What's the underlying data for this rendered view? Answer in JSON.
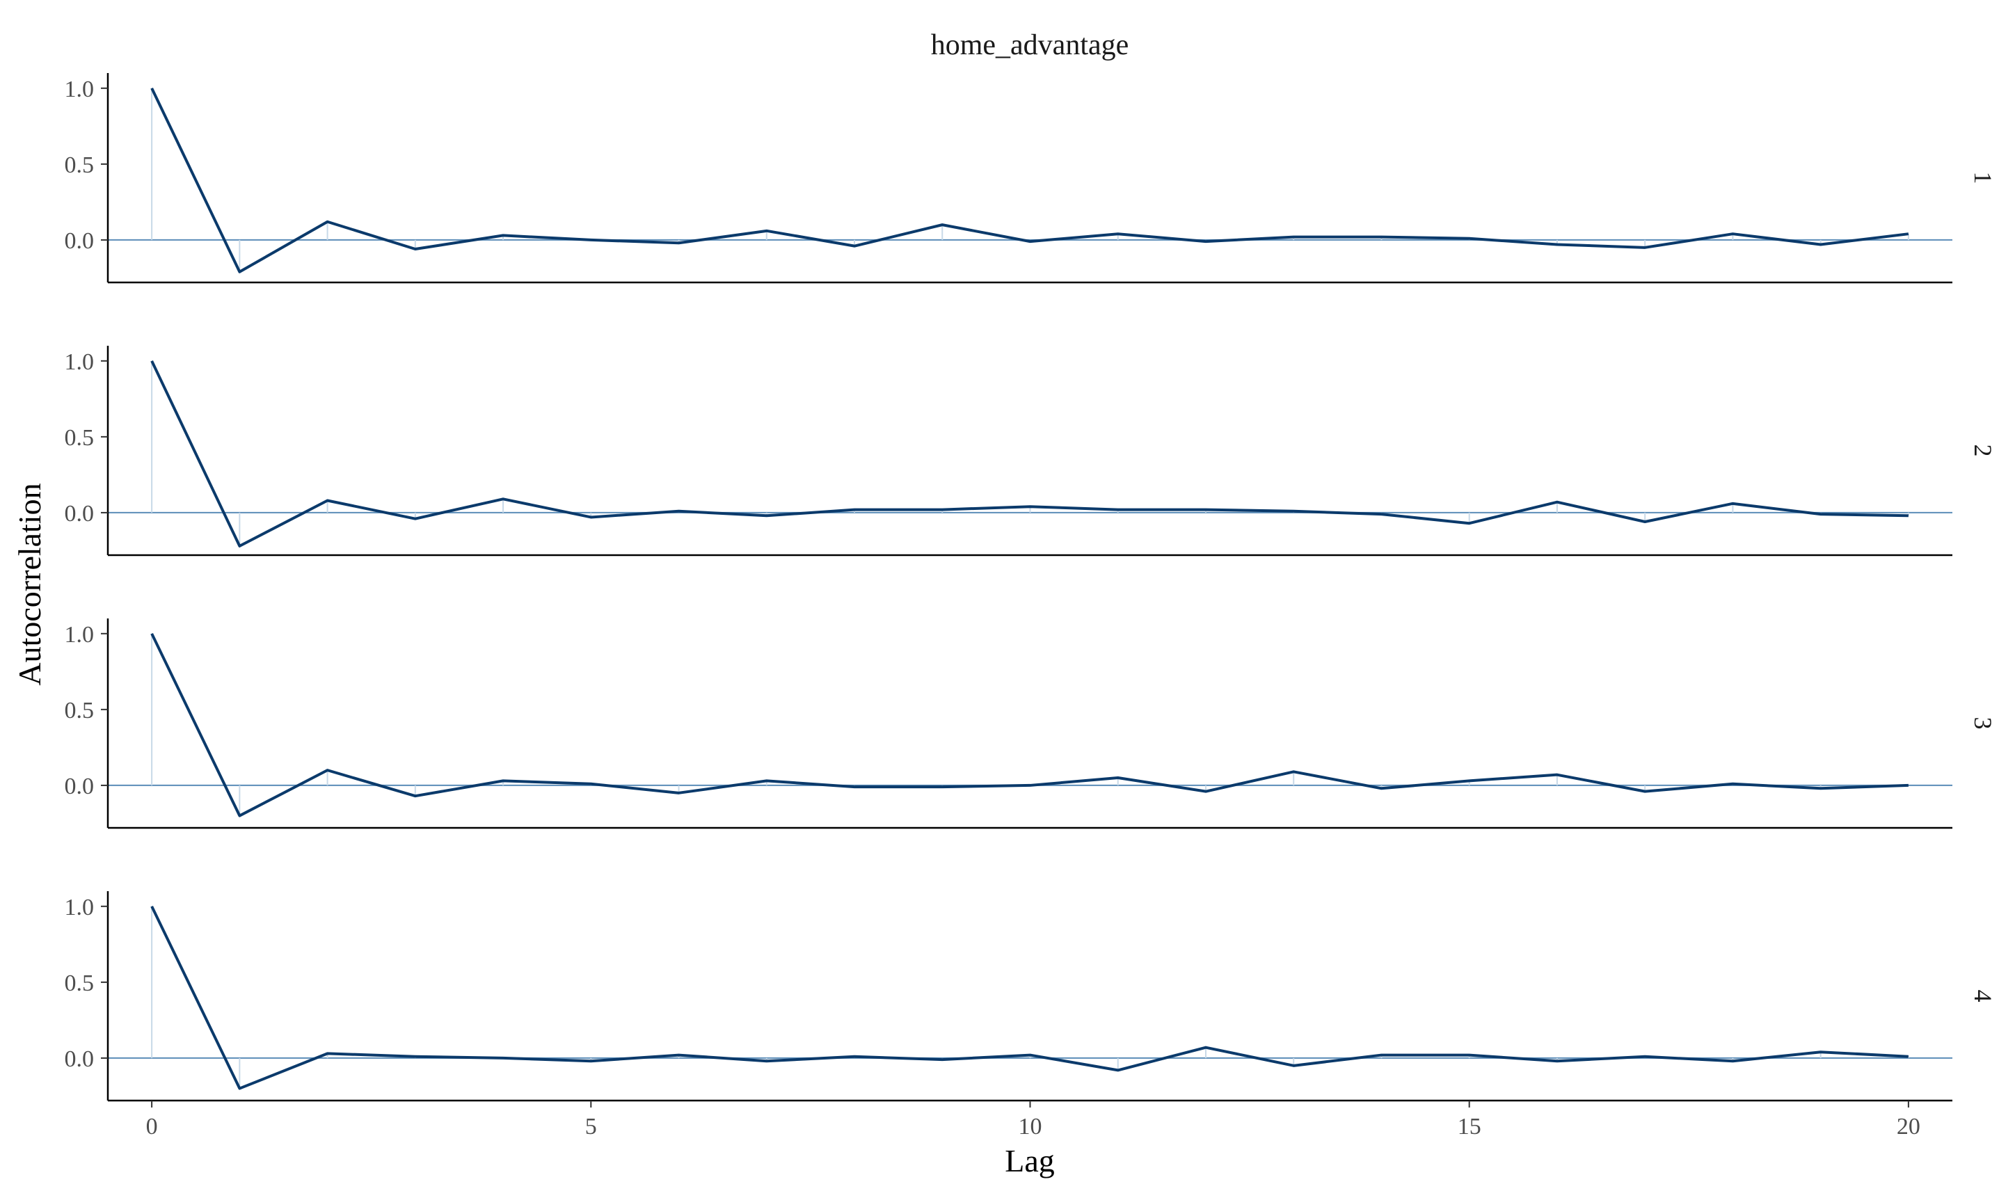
{
  "chart_data": {
    "type": "line",
    "title": "home_advantage",
    "xlabel": "Lag",
    "ylabel": "Autocorrelation",
    "x": [
      0,
      1,
      2,
      3,
      4,
      5,
      6,
      7,
      8,
      9,
      10,
      11,
      12,
      13,
      14,
      15,
      16,
      17,
      18,
      19,
      20
    ],
    "xlim": [
      -0.5,
      20.5
    ],
    "ylim": [
      -0.28,
      1.1
    ],
    "x_ticks": [
      0,
      5,
      10,
      15,
      20
    ],
    "y_ticks": [
      0.0,
      0.5,
      1.0
    ],
    "y_tick_labels": [
      "0.0",
      "0.5",
      "1.0"
    ],
    "grid": false,
    "line_color": "#0b3a6b",
    "zero_line_color": "#5b8db8",
    "panels": [
      {
        "label": "1",
        "values": [
          1.0,
          -0.21,
          0.12,
          -0.06,
          0.03,
          0.0,
          -0.02,
          0.06,
          -0.04,
          0.1,
          -0.01,
          0.04,
          -0.01,
          0.02,
          0.02,
          0.01,
          -0.03,
          -0.05,
          0.04,
          -0.03,
          0.04
        ]
      },
      {
        "label": "2",
        "values": [
          1.0,
          -0.22,
          0.08,
          -0.04,
          0.09,
          -0.03,
          0.01,
          -0.02,
          0.02,
          0.02,
          0.04,
          0.02,
          0.02,
          0.01,
          -0.01,
          -0.07,
          0.07,
          -0.06,
          0.06,
          -0.01,
          -0.02
        ]
      },
      {
        "label": "3",
        "values": [
          1.0,
          -0.2,
          0.1,
          -0.07,
          0.03,
          0.01,
          -0.05,
          0.03,
          -0.01,
          -0.01,
          0.0,
          0.05,
          -0.04,
          0.09,
          -0.02,
          0.03,
          0.07,
          -0.04,
          0.01,
          -0.02,
          0.0
        ]
      },
      {
        "label": "4",
        "values": [
          1.0,
          -0.2,
          0.03,
          0.01,
          0.0,
          -0.02,
          0.02,
          -0.02,
          0.01,
          -0.01,
          0.02,
          -0.08,
          0.07,
          -0.05,
          0.02,
          0.02,
          -0.02,
          0.01,
          -0.02,
          0.04,
          0.01
        ]
      }
    ]
  }
}
